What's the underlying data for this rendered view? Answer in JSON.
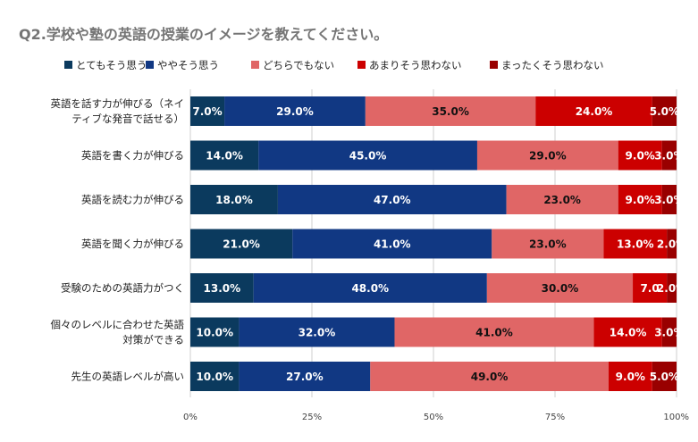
{
  "chart_data": {
    "type": "bar",
    "orientation": "horizontal",
    "stacked": true,
    "title": "Q2.学校や塾の英語の授業のイメージを教えてください。",
    "legend_position": "top",
    "grid": true,
    "xlim": [
      0,
      100
    ],
    "ticks": [
      0,
      25,
      50,
      75,
      100
    ],
    "tick_labels": [
      "0%",
      "25%",
      "50%",
      "75%",
      "100%"
    ],
    "categories": [
      [
        "英語を話す力が伸びる（ネイ",
        "ティブな発音で話せる）"
      ],
      [
        "英語を書く力が伸びる"
      ],
      [
        "英語を読む力が伸びる"
      ],
      [
        "英語を聞く力が伸びる"
      ],
      [
        "受験のための英語力がつく"
      ],
      [
        "個々のレベルに合わせた英語",
        "対策ができる"
      ],
      [
        "先生の英語レベルが高い"
      ]
    ],
    "series": [
      {
        "name": "とてもそう思う",
        "color": "#0b3a5e",
        "label_color": "#ffffff",
        "values": [
          7,
          14,
          18,
          21,
          13,
          10,
          10
        ],
        "labels": [
          "7.0%",
          "14.0%",
          "18.0%",
          "21.0%",
          "13.0%",
          "10.0%",
          "10.0%"
        ]
      },
      {
        "name": "ややそう思う",
        "color": "#113883",
        "label_color": "#ffffff",
        "values": [
          29,
          45,
          47,
          41,
          48,
          32,
          27
        ],
        "labels": [
          "29.0%",
          "45.0%",
          "47.0%",
          "41.0%",
          "48.0%",
          "32.0%",
          "27.0%"
        ]
      },
      {
        "name": "どちらでもない",
        "color": "#e06666",
        "label_color": "#111111",
        "values": [
          35,
          29,
          23,
          23,
          30,
          41,
          49
        ],
        "labels": [
          "35.0%",
          "29.0%",
          "23.0%",
          "23.0%",
          "30.0%",
          "41.0%",
          "49.0%"
        ]
      },
      {
        "name": "あまりそう思わない",
        "color": "#cc0000",
        "label_color": "#ffffff",
        "values": [
          24,
          9,
          9,
          13,
          7,
          14,
          9
        ],
        "labels": [
          "24.0%",
          "9.0%",
          "9.0%",
          "13.0%",
          "7.0",
          "14.0%",
          "9.0%"
        ]
      },
      {
        "name": "まったくそう思わない",
        "color": "#990000",
        "label_color": "#ffffff",
        "values": [
          5,
          3,
          3,
          2,
          2,
          3,
          5
        ],
        "labels": [
          "5.0%",
          "3.0%",
          "3.0%",
          "2.0%",
          "2.0%",
          "3.0%",
          "5.0%"
        ]
      }
    ]
  }
}
